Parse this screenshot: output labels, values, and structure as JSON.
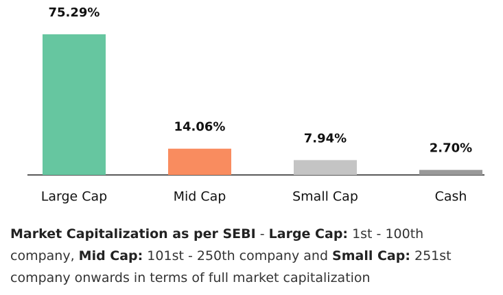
{
  "chart_data": {
    "type": "bar",
    "categories": [
      "Large Cap",
      "Mid Cap",
      "Small Cap",
      "Cash"
    ],
    "values": [
      75.29,
      14.06,
      7.94,
      2.7
    ],
    "value_labels": [
      "75.29%",
      "14.06%",
      "7.94%",
      "2.70%"
    ],
    "colors": [
      "#66c6a0",
      "#f98c5f",
      "#c4c4c4",
      "#999999"
    ]
  },
  "footnote": {
    "parts": [
      {
        "text": "Market Capitalization as per SEBI",
        "bold": true
      },
      {
        "text": " - ",
        "bold": false
      },
      {
        "text": "Large Cap:",
        "bold": true
      },
      {
        "text": " 1st - 100th company, ",
        "bold": false
      },
      {
        "text": "Mid Cap:",
        "bold": true
      },
      {
        "text": " 101st - 250th company and ",
        "bold": false
      },
      {
        "text": "Small Cap:",
        "bold": true
      },
      {
        "text": " 251st company onwards in terms of full market capitalization",
        "bold": false
      }
    ]
  }
}
